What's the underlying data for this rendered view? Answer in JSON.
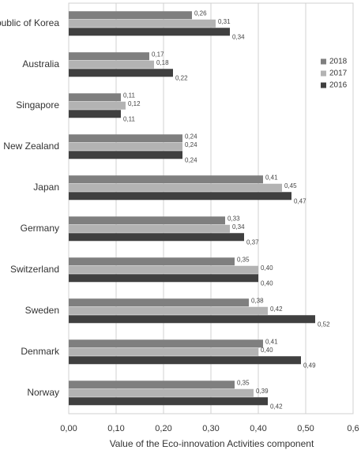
{
  "chart_data": {
    "type": "hbar",
    "x_label": "Value of the Eco-innovation Activities component",
    "categories": [
      "public of Korea",
      "Australia",
      "Singapore",
      "New Zealand",
      "Japan",
      "Germany",
      "Switzerland",
      "Sweden",
      "Denmark",
      "Norway"
    ],
    "series": [
      {
        "name": "2018",
        "color": "#7f7f7f",
        "values": [
          0.26,
          0.17,
          0.11,
          0.24,
          0.41,
          0.33,
          0.35,
          0.38,
          0.41,
          0.35
        ],
        "value_labels": [
          "0,26",
          "0,17",
          "0,11",
          "0,24",
          "0,41",
          "0,33",
          "0,35",
          "0,38",
          "0,41",
          "0,35"
        ]
      },
      {
        "name": "2017",
        "color": "#b3b3b3",
        "values": [
          0.31,
          0.18,
          0.12,
          0.24,
          0.45,
          0.34,
          0.4,
          0.42,
          0.4,
          0.39
        ],
        "value_labels": [
          "0,31",
          "0,18",
          "0,12",
          "0,24",
          "0,45",
          "0,34",
          "0,40",
          "0,42",
          "0,40",
          "0,39"
        ]
      },
      {
        "name": "2016",
        "color": "#404040",
        "values": [
          0.34,
          0.22,
          0.11,
          0.24,
          0.47,
          0.37,
          0.4,
          0.52,
          0.49,
          0.42
        ],
        "value_labels": [
          "0,34",
          "0,22",
          "0,11",
          "0,24",
          "0,47",
          "0,37",
          "0,40",
          "0,52",
          "0,49",
          "0,42"
        ]
      }
    ],
    "xlim": [
      0,
      0.6
    ],
    "xticks": [
      {
        "value": 0,
        "label": "0,00"
      },
      {
        "value": 0.1,
        "label": "0,10"
      },
      {
        "value": 0.2,
        "label": "0,20"
      },
      {
        "value": 0.3,
        "label": "0,30"
      },
      {
        "value": 0.4,
        "label": "0,40"
      },
      {
        "value": 0.5,
        "label": "0,50"
      },
      {
        "value": 0.6,
        "label": "0,6"
      }
    ],
    "grid": true,
    "legend": "upper right"
  }
}
